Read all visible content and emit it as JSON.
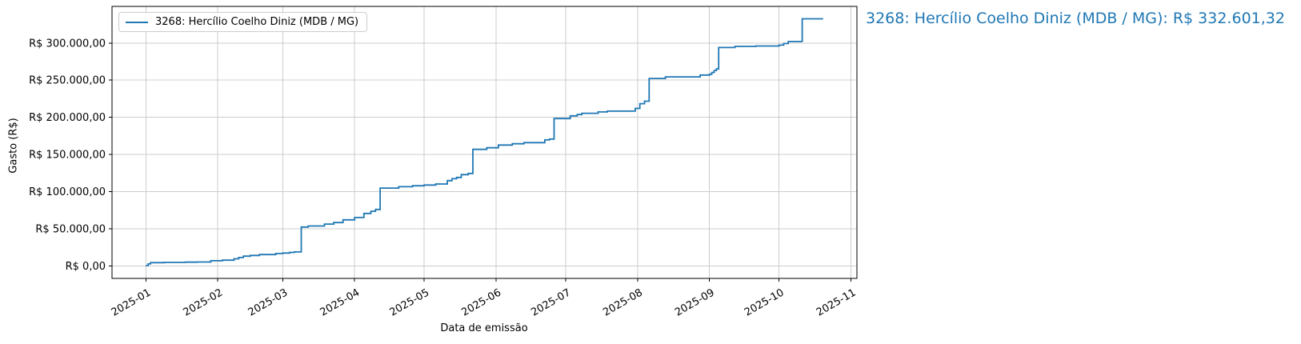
{
  "annotation": {
    "text": "3268: Hercílio Coelho Diniz (MDB / MG): R$ 332.601,32",
    "color": "#1f77b4"
  },
  "legend": {
    "label": "3268: Hercílio Coelho Diniz (MDB / MG)"
  },
  "axes": {
    "xlabel": "Data de emissão",
    "ylabel": "Gasto (R$)"
  },
  "chart_data": {
    "type": "line",
    "step_mode": "post",
    "title": "",
    "xlabel": "Data de emissão",
    "ylabel": "Gasto (R$)",
    "grid": true,
    "grid_color": "#cccccc",
    "spine_color": "#000000",
    "legend_position": "upper left",
    "x_tick_labels": [
      "2025-01",
      "2025-02",
      "2025-03",
      "2025-04",
      "2025-05",
      "2025-06",
      "2025-07",
      "2025-08",
      "2025-09",
      "2025-10",
      "2025-11"
    ],
    "y_ticks": [
      {
        "value": 0,
        "label": "R$ 0,00"
      },
      {
        "value": 50000,
        "label": "R$ 50.000,00"
      },
      {
        "value": 100000,
        "label": "R$ 100.000,00"
      },
      {
        "value": 150000,
        "label": "R$ 150.000,00"
      },
      {
        "value": 200000,
        "label": "R$ 200.000,00"
      },
      {
        "value": 250000,
        "label": "R$ 250.000,00"
      },
      {
        "value": 300000,
        "label": "R$ 300.000,00"
      }
    ],
    "ylim": [
      -16630,
      349232
    ],
    "xlim_days_from_2025_01_01": [
      -14.6,
      306.6
    ],
    "series": [
      {
        "name": "3268: Hercílio Coelho Diniz (MDB / MG)",
        "color": "#1f77b4",
        "final_total_label": "R$ 332.601,32",
        "final_total_value": 332601.32,
        "points": [
          [
            "2025-01-01",
            600
          ],
          [
            "2025-01-02",
            2800
          ],
          [
            "2025-01-03",
            4600
          ],
          [
            "2025-01-09",
            4900
          ],
          [
            "2025-01-18",
            5200
          ],
          [
            "2025-01-23",
            5400
          ],
          [
            "2025-01-29",
            7100
          ],
          [
            "2025-02-03",
            7900
          ],
          [
            "2025-02-08",
            9700
          ],
          [
            "2025-02-10",
            11500
          ],
          [
            "2025-02-12",
            13300
          ],
          [
            "2025-02-15",
            14300
          ],
          [
            "2025-02-19",
            15400
          ],
          [
            "2025-02-26",
            16800
          ],
          [
            "2025-03-01",
            17500
          ],
          [
            "2025-03-04",
            18300
          ],
          [
            "2025-03-06",
            19000
          ],
          [
            "2025-03-09",
            52500
          ],
          [
            "2025-03-12",
            53900
          ],
          [
            "2025-03-19",
            56400
          ],
          [
            "2025-03-23",
            58500
          ],
          [
            "2025-03-27",
            62100
          ],
          [
            "2025-04-01",
            65300
          ],
          [
            "2025-04-05",
            70700
          ],
          [
            "2025-04-08",
            73600
          ],
          [
            "2025-04-10",
            76100
          ],
          [
            "2025-04-12",
            104900
          ],
          [
            "2025-04-20",
            106700
          ],
          [
            "2025-04-26",
            108000
          ],
          [
            "2025-05-01",
            108900
          ],
          [
            "2025-05-06",
            110300
          ],
          [
            "2025-05-11",
            114900
          ],
          [
            "2025-05-13",
            117500
          ],
          [
            "2025-05-15",
            119200
          ],
          [
            "2025-05-17",
            122900
          ],
          [
            "2025-05-20",
            124600
          ],
          [
            "2025-05-22",
            156900
          ],
          [
            "2025-05-28",
            159100
          ],
          [
            "2025-06-02",
            162800
          ],
          [
            "2025-06-08",
            164500
          ],
          [
            "2025-06-13",
            166000
          ],
          [
            "2025-06-22",
            169600
          ],
          [
            "2025-06-24",
            170700
          ],
          [
            "2025-06-26",
            198400
          ],
          [
            "2025-07-03",
            202000
          ],
          [
            "2025-07-06",
            203700
          ],
          [
            "2025-07-08",
            205500
          ],
          [
            "2025-07-15",
            207300
          ],
          [
            "2025-07-19",
            208400
          ],
          [
            "2025-07-31",
            212000
          ],
          [
            "2025-08-02",
            218400
          ],
          [
            "2025-08-04",
            221700
          ],
          [
            "2025-08-06",
            252300
          ],
          [
            "2025-08-13",
            254400
          ],
          [
            "2025-08-28",
            256900
          ],
          [
            "2025-09-01",
            258000
          ],
          [
            "2025-09-02",
            260400
          ],
          [
            "2025-09-03",
            263000
          ],
          [
            "2025-09-04",
            265200
          ],
          [
            "2025-09-05",
            293900
          ],
          [
            "2025-09-12",
            295400
          ],
          [
            "2025-09-21",
            296000
          ],
          [
            "2025-10-01",
            297100
          ],
          [
            "2025-10-03",
            299300
          ],
          [
            "2025-10-05",
            302000
          ],
          [
            "2025-10-11",
            332601.32
          ],
          [
            "2025-10-20",
            332601.32
          ]
        ]
      }
    ]
  }
}
